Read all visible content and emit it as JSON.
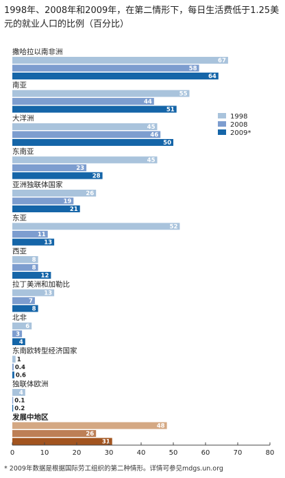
{
  "chart_data": {
    "type": "bar",
    "orientation": "horizontal",
    "title": "1998年、2008年和2009年，在第二情形下，每日生活费低于1.25美元的就业人口的比例（百分比）",
    "categories": [
      "撒哈拉以南非洲",
      "南亚",
      "大洋洲",
      "东南亚",
      "亚洲独联体国家",
      "东亚",
      "西亚",
      "拉丁美洲和加勒比",
      "北非",
      "东南欧转型经济国家",
      "独联体欧洲",
      "发展中地区"
    ],
    "series": [
      {
        "name": "1998",
        "color": "#a9c3dc",
        "values": [
          67,
          55,
          45,
          45,
          26,
          52,
          8,
          13,
          6,
          1,
          4,
          48
        ]
      },
      {
        "name": "2008",
        "color": "#7d9dcf",
        "values": [
          58,
          44,
          46,
          23,
          19,
          11,
          8,
          7,
          3,
          0.4,
          0.1,
          26
        ]
      },
      {
        "name": "2009*",
        "color": "#1565a8",
        "values": [
          64,
          51,
          50,
          28,
          21,
          13,
          12,
          8,
          4,
          0.6,
          0.2,
          31
        ]
      }
    ],
    "highlight_category": "发展中地区",
    "highlight_colors": [
      "#d4a883",
      "#bd7f56",
      "#a2541f"
    ],
    "label_colors": [
      "#ffffff",
      "#ffffff",
      "#ffffff"
    ],
    "xlim": [
      0,
      80
    ],
    "xticks": [
      0,
      10,
      20,
      30,
      40,
      50,
      60,
      70,
      80
    ],
    "legend_position": "right",
    "grid": false
  },
  "footnote": "* 2009年数据是根据国际劳工组织的第二种情形。详情可参见mdgs.un.org"
}
